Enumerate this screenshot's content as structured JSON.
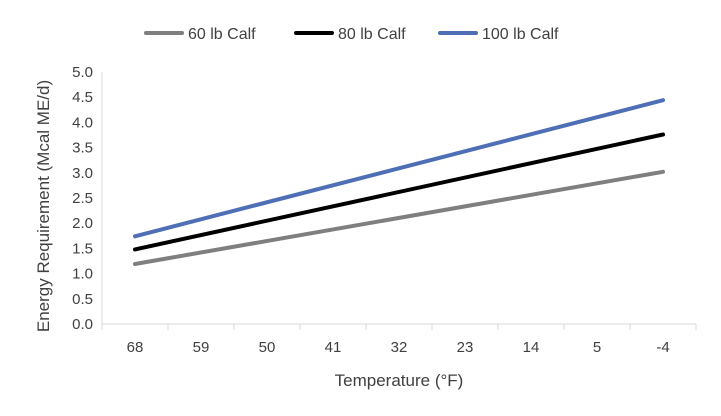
{
  "chart_data": {
    "type": "line",
    "title": "",
    "xlabel": "Temperature (°F)",
    "ylabel": "Energy Requirement (Mcal ME/d)",
    "categories": [
      "68",
      "59",
      "50",
      "41",
      "32",
      "23",
      "14",
      "5",
      "-4"
    ],
    "x": [
      68,
      -4
    ],
    "ylim": [
      0,
      5
    ],
    "y_ticks": [
      "0.0",
      "0.5",
      "1.0",
      "1.5",
      "2.0",
      "2.5",
      "3.0",
      "3.5",
      "4.0",
      "4.5",
      "5.0"
    ],
    "grid": false,
    "legend_position": "top",
    "series": [
      {
        "name": "60 lb Calf",
        "color": "#7f7f7f",
        "x": [
          68,
          -4
        ],
        "values": [
          1.19,
          3.02
        ]
      },
      {
        "name": "80 lb Calf",
        "color": "#000000",
        "x": [
          68,
          -4
        ],
        "values": [
          1.48,
          3.76
        ]
      },
      {
        "name": "100 lb Calf",
        "color": "#4e6fb5",
        "x": [
          68,
          -4
        ],
        "values": [
          1.74,
          4.44
        ]
      }
    ]
  }
}
